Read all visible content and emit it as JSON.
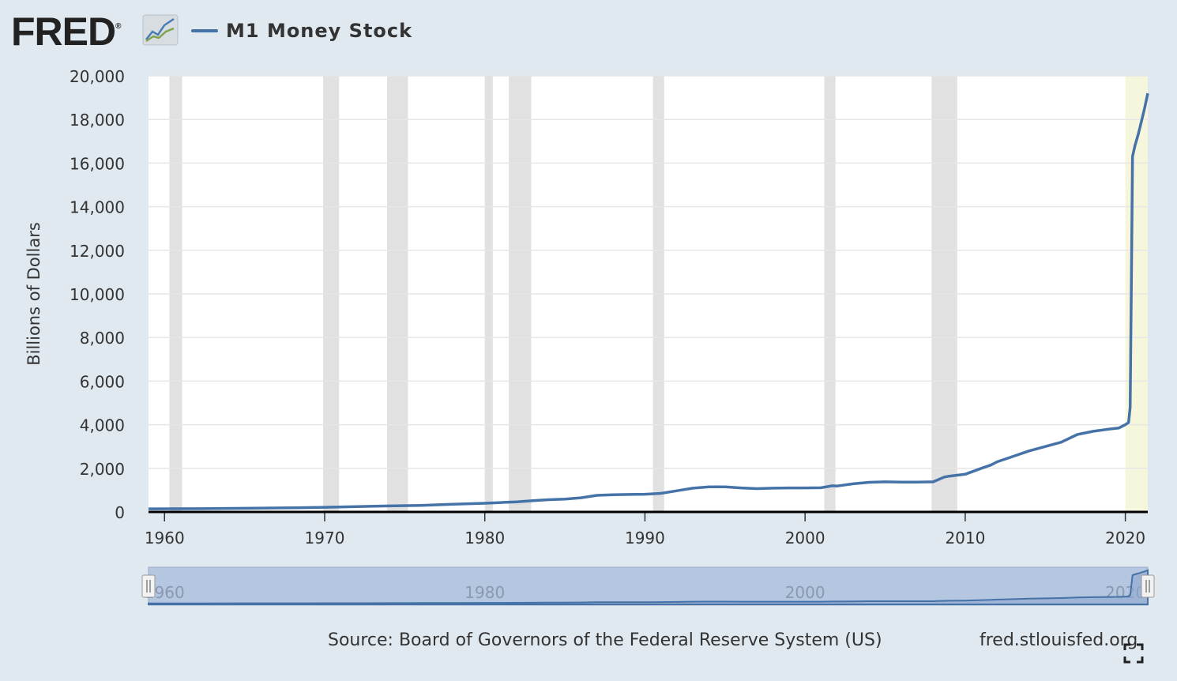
{
  "header": {
    "logo_text": "FRED",
    "logo_reg": "®",
    "series_label": "M1 Money Stock"
  },
  "footer": {
    "source": "Source: Board of Governors of the Federal Reserve System (US)",
    "site": "fred.stlouisfed.org"
  },
  "icons": {
    "logo_graph": "line-chart-icon",
    "fullscreen": "fullscreen-icon",
    "navigator_handle": "grip-handle-icon"
  },
  "colors": {
    "series": "#4572a7",
    "recession": "#e1e1e1",
    "highlight": "#f6f6dc",
    "navigator_fill": "#b5c6e0",
    "background": "#e1e9f0"
  },
  "chart_data": {
    "type": "line",
    "xlabel": "",
    "ylabel": "Billions of Dollars",
    "xlim": [
      1959,
      2021.4
    ],
    "ylim": [
      0,
      20000
    ],
    "y_ticks": [
      0,
      2000,
      4000,
      6000,
      8000,
      10000,
      12000,
      14000,
      16000,
      18000,
      20000
    ],
    "y_tick_labels": [
      "0",
      "2,000",
      "4,000",
      "6,000",
      "8,000",
      "10,000",
      "12,000",
      "14,000",
      "16,000",
      "18,000",
      "20,000"
    ],
    "x_ticks": [
      1960,
      1970,
      1980,
      1990,
      2000,
      2010,
      2020
    ],
    "x_tick_labels": [
      "1960",
      "1970",
      "1980",
      "1990",
      "2000",
      "2010",
      "2020"
    ],
    "grid": true,
    "recessions": [
      [
        1960.3,
        1961.1
      ],
      [
        1969.9,
        1970.9
      ],
      [
        1973.9,
        1975.2
      ],
      [
        1980.0,
        1980.5
      ],
      [
        1981.5,
        1982.9
      ],
      [
        1990.5,
        1991.2
      ],
      [
        2001.2,
        2001.9
      ],
      [
        2007.9,
        2009.5
      ]
    ],
    "highlighted_period": [
      2020.0,
      2021.4
    ],
    "series": [
      {
        "name": "M1 Money Stock",
        "x": [
          1959.0,
          1962.0,
          1965.0,
          1968.0,
          1970.0,
          1972.0,
          1974.0,
          1976.0,
          1978.0,
          1980.0,
          1981.0,
          1982.0,
          1983.0,
          1984.0,
          1985.0,
          1986.0,
          1987.0,
          1988.0,
          1989.0,
          1990.0,
          1991.0,
          1992.0,
          1993.0,
          1994.0,
          1995.0,
          1996.0,
          1997.0,
          1998.0,
          1999.0,
          2000.0,
          2001.0,
          2001.7,
          2002.0,
          2003.0,
          2004.0,
          2005.0,
          2006.0,
          2007.0,
          2008.0,
          2008.7,
          2009.0,
          2010.0,
          2011.0,
          2011.6,
          2012.0,
          2013.0,
          2014.0,
          2015.0,
          2016.0,
          2017.0,
          2018.0,
          2019.0,
          2019.6,
          2020.0,
          2020.2,
          2020.3,
          2020.37,
          2020.45,
          2020.6,
          2020.8,
          2021.0,
          2021.2,
          2021.4
        ],
        "values": [
          140,
          147,
          165,
          190,
          215,
          245,
          275,
          300,
          350,
          400,
          430,
          460,
          515,
          560,
          590,
          650,
          760,
          790,
          800,
          810,
          850,
          970,
          1090,
          1150,
          1150,
          1100,
          1070,
          1090,
          1100,
          1100,
          1110,
          1200,
          1190,
          1290,
          1360,
          1380,
          1370,
          1370,
          1380,
          1600,
          1640,
          1730,
          2000,
          2150,
          2300,
          2550,
          2800,
          3000,
          3200,
          3550,
          3700,
          3800,
          3850,
          4000,
          4100,
          4800,
          10000,
          16300,
          16800,
          17300,
          17900,
          18500,
          19200
        ]
      }
    ],
    "navigator": {
      "xlim": [
        1959,
        2021.4
      ],
      "x_tick_labels": [
        "1960",
        "1980",
        "2000",
        "2020"
      ],
      "x_ticks": [
        1960,
        1980,
        2000,
        2020
      ]
    }
  }
}
